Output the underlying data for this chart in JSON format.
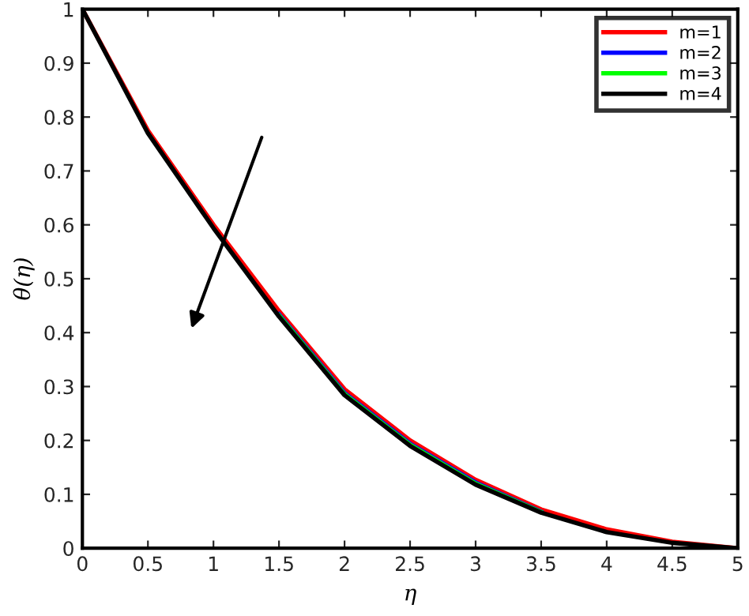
{
  "chart_data": {
    "type": "line",
    "xlabel": "η",
    "ylabel": "θ(η)",
    "xlim": [
      0,
      5
    ],
    "ylim": [
      0,
      1
    ],
    "xticks": [
      0,
      0.5,
      1,
      1.5,
      2,
      2.5,
      3,
      3.5,
      4,
      4.5,
      5
    ],
    "yticks": [
      0,
      0.1,
      0.2,
      0.3,
      0.4,
      0.5,
      0.6,
      0.7,
      0.8,
      0.9,
      1
    ],
    "x": [
      0,
      0.5,
      1,
      1.5,
      2,
      2.5,
      3,
      3.5,
      4,
      4.5,
      5
    ],
    "series": [
      {
        "name": "m=1",
        "color": "#ff0000",
        "values": [
          1,
          0.775,
          0.6,
          0.44,
          0.295,
          0.2,
          0.127,
          0.072,
          0.035,
          0.012,
          0
        ]
      },
      {
        "name": "m=2",
        "color": "#0000ff",
        "values": [
          null,
          null,
          null,
          0.434,
          0.288,
          0.194,
          0.122,
          0.068,
          null,
          null,
          null
        ]
      },
      {
        "name": "m=3",
        "color": "#00ff00",
        "values": [
          null,
          null,
          null,
          0.432,
          0.286,
          0.192,
          0.12,
          0.067,
          null,
          null,
          null
        ]
      },
      {
        "name": "m=4",
        "color": "#000000",
        "values": [
          1,
          0.77,
          0.594,
          0.43,
          0.284,
          0.19,
          0.118,
          0.066,
          0.03,
          0.01,
          0
        ]
      }
    ],
    "legend": "top right",
    "grid": false,
    "line_style": "solid",
    "marker": "none"
  }
}
